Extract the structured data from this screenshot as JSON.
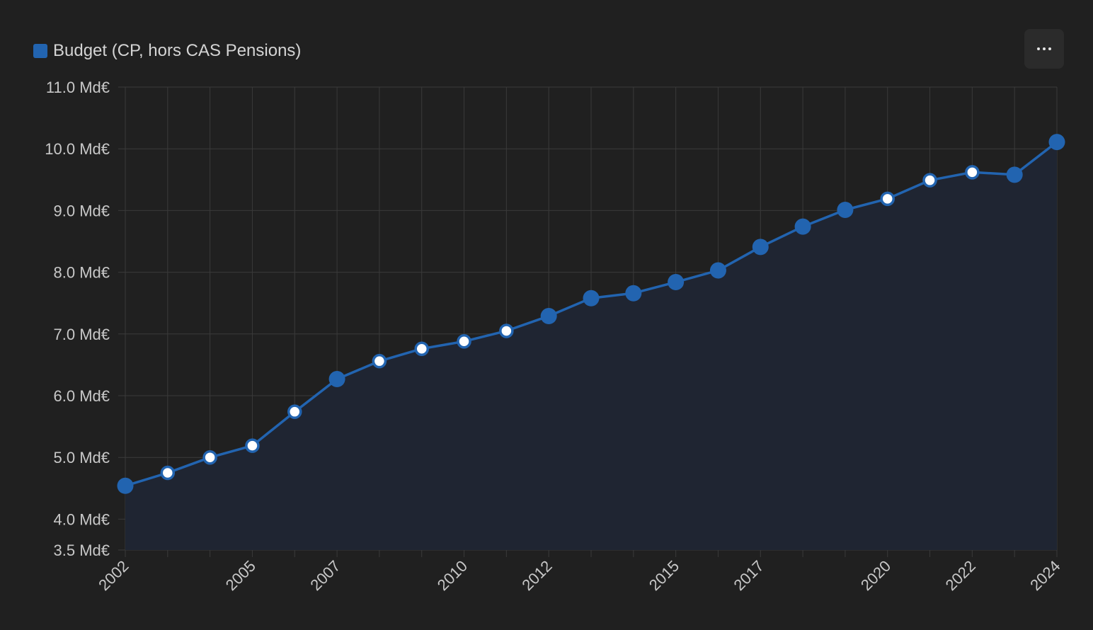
{
  "colors": {
    "background": "#202020",
    "grid": "#3a3a3a",
    "series": "#2264b0",
    "area_fill": "#1f2532",
    "label": "#c8c8c8",
    "point_hollow": "#ffffff"
  },
  "legend": {
    "label": "Budget (CP, hors CAS Pensions)"
  },
  "menu": {
    "icon": "more-horizontal-icon"
  },
  "chart_data": {
    "type": "area",
    "series": [
      {
        "name": "Budget (CP, hors CAS Pensions)",
        "x": [
          2002,
          2003,
          2004,
          2005,
          2006,
          2007,
          2008,
          2009,
          2010,
          2011,
          2012,
          2013,
          2014,
          2015,
          2016,
          2017,
          2018,
          2019,
          2020,
          2021,
          2022,
          2023,
          2024
        ],
        "values": [
          4.54,
          4.75,
          5.0,
          5.19,
          5.74,
          6.27,
          6.56,
          6.76,
          6.88,
          7.05,
          7.29,
          7.58,
          7.66,
          7.84,
          8.03,
          8.41,
          8.74,
          9.01,
          9.19,
          9.49,
          9.62,
          9.58,
          10.11
        ],
        "point_style": [
          "filled",
          "hollow",
          "hollow",
          "hollow",
          "hollow",
          "filled",
          "hollow",
          "hollow",
          "hollow",
          "hollow",
          "filled",
          "filled",
          "filled",
          "filled",
          "filled",
          "filled",
          "filled",
          "filled",
          "hollow",
          "hollow",
          "hollow",
          "filled",
          "filled"
        ]
      }
    ],
    "x_tick_labels": [
      "2002",
      "2005",
      "2007",
      "2010",
      "2012",
      "2015",
      "2017",
      "2020",
      "2022",
      "2024"
    ],
    "y_tick_values": [
      3.5,
      4.0,
      5.0,
      6.0,
      7.0,
      8.0,
      9.0,
      10.0,
      11.0
    ],
    "y_tick_labels": [
      "3.5 Md€",
      "4.0 Md€",
      "5.0 Md€",
      "6.0 Md€",
      "7.0 Md€",
      "8.0 Md€",
      "9.0 Md€",
      "10.0 Md€",
      "11.0 Md€"
    ],
    "xlim": [
      2002,
      2024
    ],
    "ylim": [
      3.5,
      11.0
    ],
    "grid": true,
    "legend_position": "top-left",
    "title": "",
    "xlabel": "",
    "ylabel": ""
  }
}
